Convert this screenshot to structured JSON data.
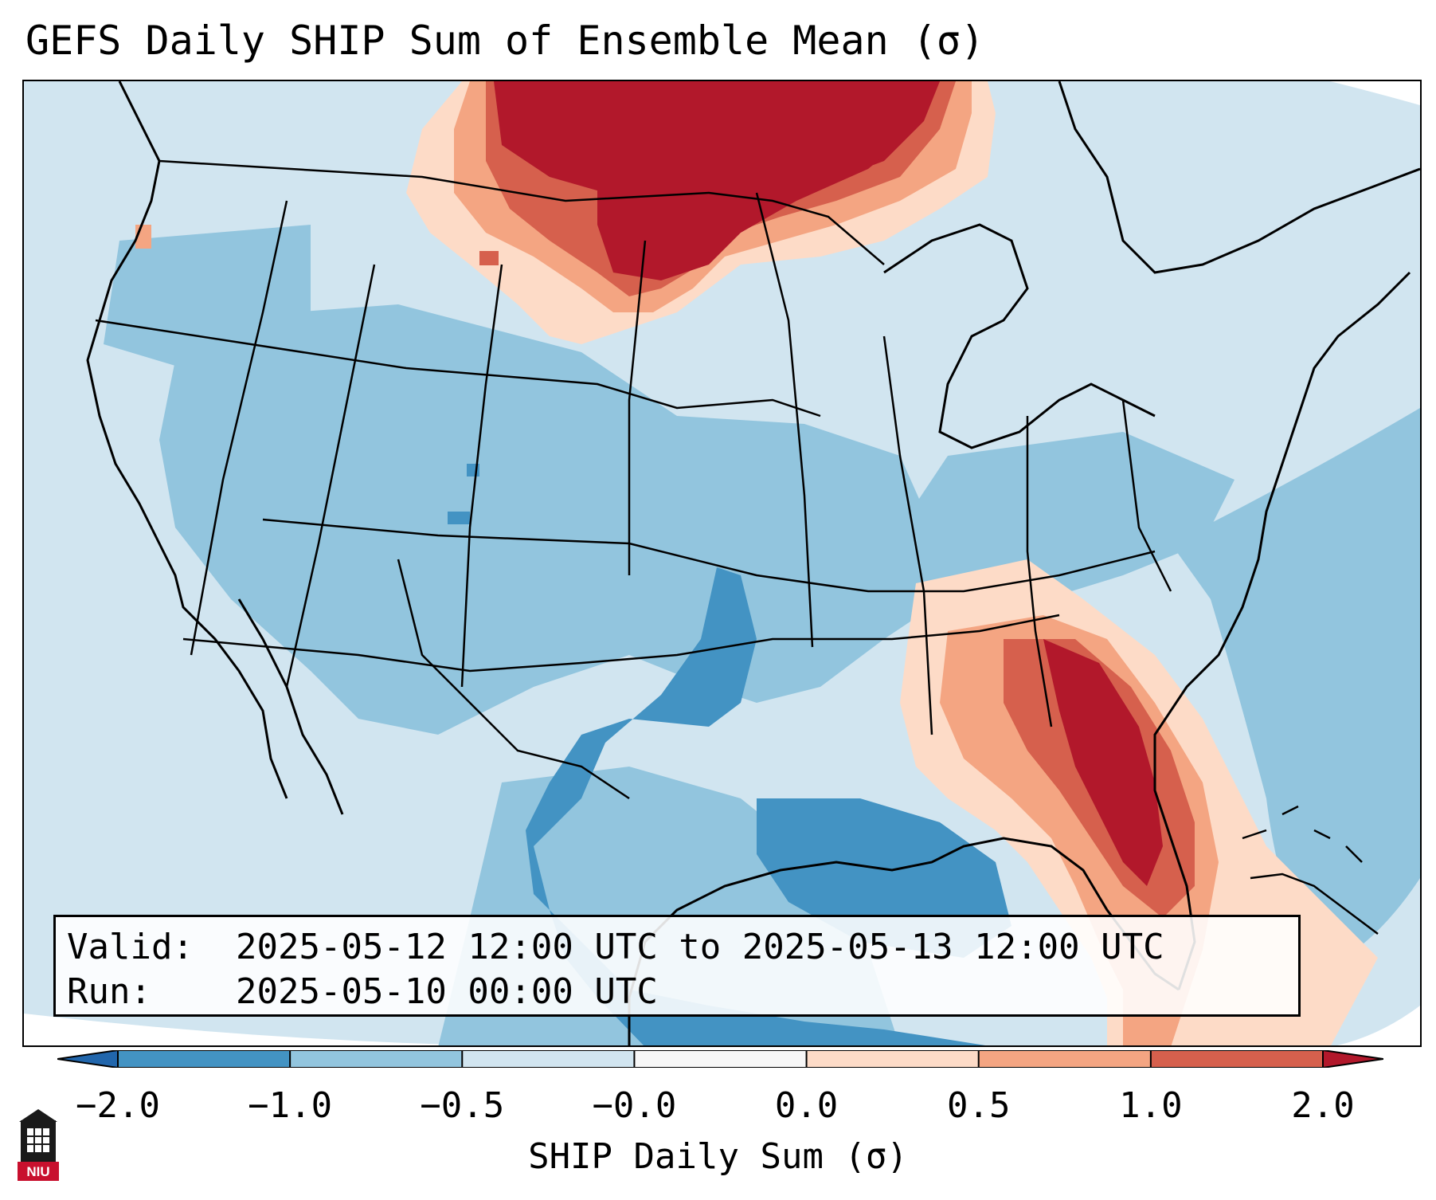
{
  "title": "GEFS Daily SHIP Sum of Ensemble Mean (σ)",
  "info": {
    "valid_label": "Valid:",
    "valid_value": "2025-05-12 12:00 UTC to 2025-05-13 12:00 UTC",
    "run_label": "Run:",
    "run_value": "2025-05-10 00:00 UTC"
  },
  "colorbar": {
    "label": "SHIP Daily Sum (σ)",
    "ticks": [
      "−2.0",
      "−1.0",
      "−0.5",
      "−0.0",
      "0.0",
      "0.5",
      "1.0",
      "2.0"
    ],
    "colors": [
      "#4393c3",
      "#92c5de",
      "#d1e5f0",
      "#f7f7f7",
      "#fddbc7",
      "#f4a582",
      "#d6604d",
      "#b2182b"
    ],
    "extend_low_color": "#2166ac",
    "extend_high_color": "#b2182b"
  },
  "logo": {
    "text": "NIU",
    "colors": [
      "#1a1a1a",
      "#c8102e"
    ]
  }
}
